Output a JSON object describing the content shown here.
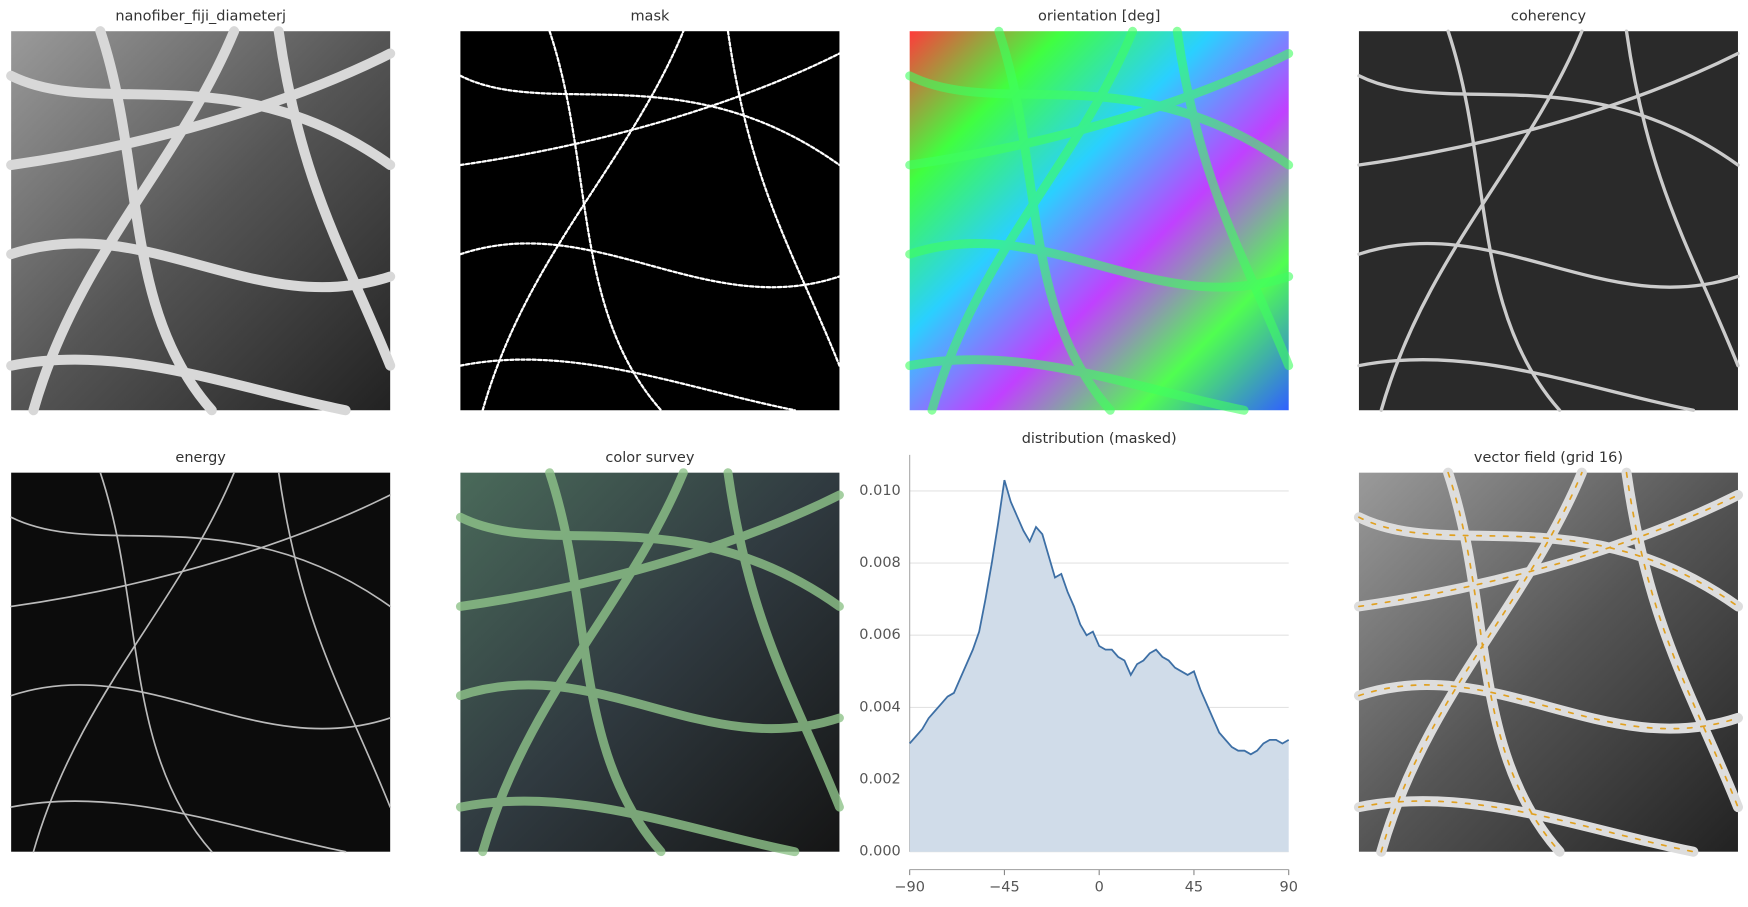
{
  "panels": [
    {
      "title": "nanofiber_fiji_diameterj"
    },
    {
      "title": "mask"
    },
    {
      "title": "orientation [deg]"
    },
    {
      "title": "coherency"
    },
    {
      "title": "energy"
    },
    {
      "title": "color survey"
    },
    {
      "title": "vector field (grid 16)"
    }
  ],
  "chart_data": {
    "type": "area",
    "title": "distribution (masked)",
    "x": [
      -90,
      -87,
      -84,
      -81,
      -78,
      -75,
      -72,
      -69,
      -66,
      -63,
      -60,
      -57,
      -54,
      -51,
      -48,
      -45,
      -42,
      -39,
      -36,
      -33,
      -30,
      -27,
      -24,
      -21,
      -18,
      -15,
      -12,
      -9,
      -6,
      -3,
      0,
      3,
      6,
      9,
      12,
      15,
      18,
      21,
      24,
      27,
      30,
      33,
      36,
      39,
      42,
      45,
      48,
      51,
      54,
      57,
      60,
      63,
      66,
      69,
      72,
      75,
      78,
      81,
      84,
      87,
      90
    ],
    "values": [
      0.003,
      0.0032,
      0.0034,
      0.0037,
      0.0039,
      0.0041,
      0.0043,
      0.0044,
      0.0048,
      0.0052,
      0.0056,
      0.0061,
      0.007,
      0.008,
      0.0091,
      0.0103,
      0.0097,
      0.0093,
      0.0089,
      0.0086,
      0.009,
      0.0088,
      0.0082,
      0.0076,
      0.0077,
      0.0072,
      0.0068,
      0.0063,
      0.006,
      0.0061,
      0.0057,
      0.0056,
      0.0056,
      0.0054,
      0.0053,
      0.0049,
      0.0052,
      0.0053,
      0.0055,
      0.0056,
      0.0054,
      0.0053,
      0.0051,
      0.005,
      0.0049,
      0.005,
      0.0045,
      0.0041,
      0.0037,
      0.0033,
      0.0031,
      0.0029,
      0.0028,
      0.0028,
      0.0027,
      0.0028,
      0.003,
      0.0031,
      0.0031,
      0.003,
      0.0031
    ],
    "color": "#3d6fa5",
    "fill_color": "#d0dce9",
    "xlim": [
      -90,
      90
    ],
    "ylim": [
      0,
      0.011
    ],
    "xticks": [
      {
        "value": -90,
        "label": "−90"
      },
      {
        "value": -45,
        "label": "−45"
      },
      0,
      45,
      90
    ],
    "yticks": [
      {
        "value": 0,
        "label": "0.000"
      },
      {
        "value": 0.002,
        "label": "0.002"
      },
      {
        "value": 0.004,
        "label": "0.004"
      },
      {
        "value": 0.006,
        "label": "0.006"
      },
      {
        "value": 0.008,
        "label": "0.008"
      },
      {
        "value": 0.01,
        "label": "0.010"
      }
    ],
    "grid": true
  }
}
